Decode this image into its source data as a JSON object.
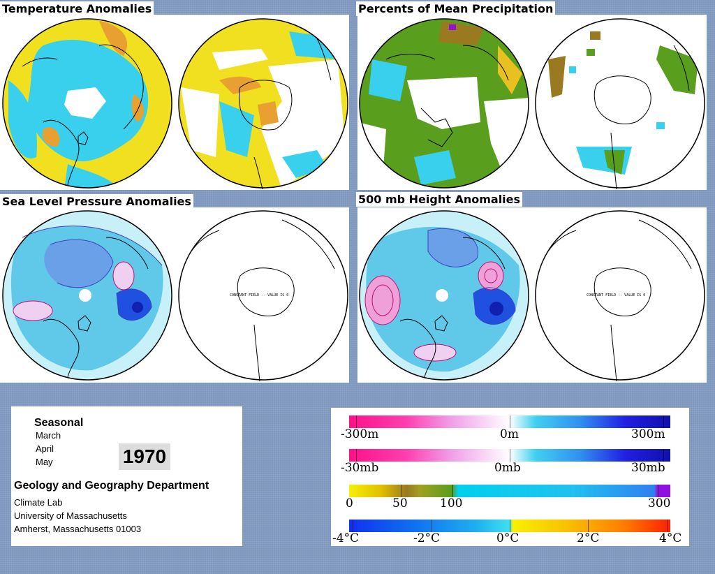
{
  "panels": {
    "temperature": {
      "title": "Temperature Anomalies"
    },
    "precipitation": {
      "title": "Percents of Mean Precipitation"
    },
    "slp": {
      "title": "Sea Level Pressure Anomalies",
      "south_note": "CONSTANT FIELD -- VALUE IS 0"
    },
    "height500": {
      "title": "500 mb Height Anomalies",
      "south_note": "CONSTANT FIELD -- VALUE IS 0"
    }
  },
  "info": {
    "period_type": "Seasonal",
    "months": [
      "March",
      "April",
      "May"
    ],
    "year": "1970",
    "department": "Geology and Geography Department",
    "lab": "Climate Lab",
    "university": "University of Massachusetts",
    "address": "Amherst, Massachusetts 01003"
  },
  "legends": {
    "height": {
      "labels": [
        "-300m",
        "0m",
        "300m"
      ]
    },
    "pressure": {
      "labels": [
        "-30mb",
        "0mb",
        "30mb"
      ]
    },
    "precip": {
      "labels": [
        "0",
        "50",
        "100",
        "300"
      ]
    },
    "temp": {
      "labels": [
        "-4°C",
        "-2°C",
        "0°C",
        "2°C",
        "4°C"
      ]
    }
  },
  "colors": {
    "background": "#7f97bd",
    "anomaly_negative": "#ff1f8f",
    "anomaly_positive": "#1010c8",
    "precip_dry": "#f5f000",
    "precip_mean": "#5a9e1e",
    "precip_wet": "#00d0f0",
    "temp_cold": "#1050ff",
    "temp_warm": "#ff2000"
  }
}
